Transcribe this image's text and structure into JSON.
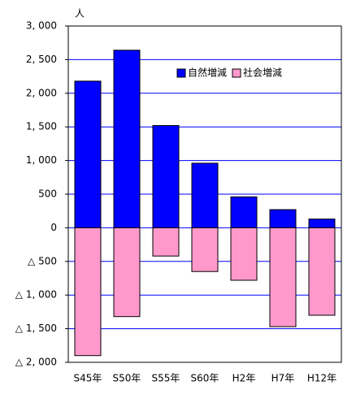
{
  "chart_data": {
    "type": "bar",
    "unit_label": "人",
    "categories": [
      "S45年",
      "S50年",
      "S55年",
      "S60年",
      "H2年",
      "H7年",
      "H12年"
    ],
    "series": [
      {
        "name": "自然増減",
        "color": "#0000ff",
        "values": [
          2180,
          2640,
          1520,
          960,
          460,
          270,
          130
        ]
      },
      {
        "name": "社会増減",
        "color": "#ff99cc",
        "values": [
          -1900,
          -1320,
          -420,
          -650,
          -780,
          -1470,
          -1300
        ]
      }
    ],
    "ylim": [
      -2000,
      3000
    ],
    "yticks": [
      {
        "value": -2000,
        "label": "△ 2, 000"
      },
      {
        "value": -1500,
        "label": "△ 1, 500"
      },
      {
        "value": -1000,
        "label": "△ 1, 000"
      },
      {
        "value": -500,
        "label": "△ 500"
      },
      0,
      500,
      {
        "value": 1000,
        "label": "1, 000"
      },
      {
        "value": 1500,
        "label": "1, 500"
      },
      {
        "value": 2000,
        "label": "2, 000"
      },
      {
        "value": 2500,
        "label": "2, 500"
      },
      {
        "value": 3000,
        "label": "3, 000"
      }
    ],
    "grid": true,
    "grid_color": "#0000ff",
    "legend": "top-right",
    "stacked": true
  }
}
